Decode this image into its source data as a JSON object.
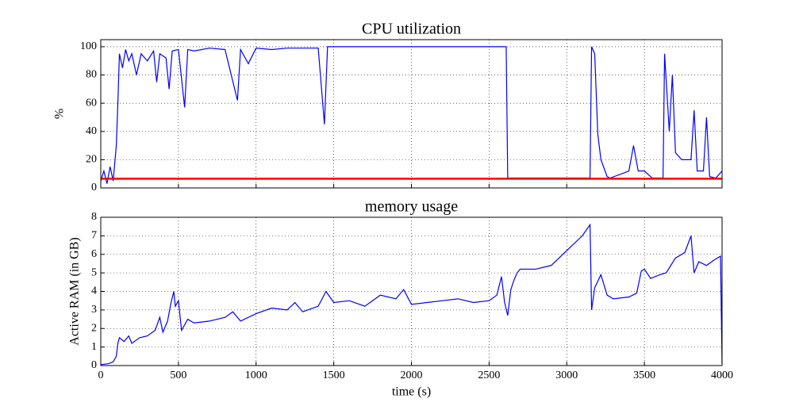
{
  "chart_data": [
    {
      "type": "line",
      "title": "CPU utilization",
      "ylabel": "%",
      "x": [
        0,
        20,
        40,
        60,
        80,
        100,
        110,
        120,
        140,
        160,
        180,
        200,
        230,
        260,
        300,
        340,
        360,
        380,
        420,
        440,
        460,
        500,
        540,
        560,
        600,
        700,
        800,
        880,
        900,
        950,
        1000,
        1100,
        1200,
        1300,
        1400,
        1440,
        1460,
        1600,
        1800,
        2000,
        2200,
        2400,
        2610,
        2620,
        2800,
        3000,
        3100,
        3150,
        3160,
        3180,
        3200,
        3220,
        3260,
        3280,
        3400,
        3430,
        3460,
        3500,
        3550,
        3620,
        3630,
        3660,
        3680,
        3700,
        3740,
        3800,
        3820,
        3840,
        3880,
        3900,
        3920,
        3960,
        4000
      ],
      "series": [
        {
          "color": "#0000ff",
          "width": 1.2,
          "values": [
            5,
            12,
            3,
            15,
            5,
            30,
            60,
            95,
            85,
            98,
            90,
            95,
            80,
            95,
            90,
            97,
            75,
            95,
            92,
            70,
            97,
            98,
            57,
            98,
            97,
            99,
            98,
            62,
            98,
            88,
            99,
            98,
            99,
            99,
            99,
            45,
            100,
            100,
            100,
            100,
            100,
            100,
            100,
            7,
            7,
            7,
            7,
            7,
            100,
            95,
            38,
            20,
            8,
            7,
            12,
            30,
            12,
            12,
            7,
            7,
            95,
            40,
            80,
            25,
            20,
            20,
            55,
            12,
            12,
            50,
            8,
            7,
            12
          ]
        },
        {
          "color": "#ff0000",
          "width": 2.5,
          "values": [
            6.5,
            6.5,
            6.5,
            6.5,
            6.5,
            6.5,
            6.5,
            6.5,
            6.5,
            6.5,
            6.5,
            6.5,
            6.5,
            6.5,
            6.5,
            6.5,
            6.5,
            6.5,
            6.5,
            6.5,
            6.5,
            6.5,
            6.5,
            6.5,
            6.5,
            6.5,
            6.5,
            6.5,
            6.5,
            6.5,
            6.5,
            6.5,
            6.5,
            6.5,
            6.5,
            6.5,
            6.5,
            6.5,
            6.5,
            6.5,
            6.5,
            6.5,
            6.5,
            6.5,
            6.5,
            6.5,
            6.5,
            6.5,
            6.5,
            6.5,
            6.5,
            6.5,
            6.5,
            6.5,
            6.5,
            6.5,
            6.5,
            6.5,
            6.5,
            6.5,
            6.5,
            6.5,
            6.5,
            6.5,
            6.5,
            6.5,
            6.5,
            6.5,
            6.5,
            6.5,
            6.5,
            6.5,
            6.5
          ]
        }
      ],
      "xlim": [
        0,
        4000
      ],
      "xticks": [
        0,
        500,
        1000,
        1500,
        2000,
        2500,
        3000,
        3500,
        4000
      ],
      "ylim": [
        0,
        105
      ],
      "yticks": [
        0,
        20,
        40,
        60,
        80,
        100
      ],
      "grid": true
    },
    {
      "type": "line",
      "title": "memory usage",
      "xlabel": "time (s)",
      "ylabel": "Active RAM (in GB)",
      "x": [
        0,
        50,
        80,
        100,
        110,
        120,
        150,
        180,
        200,
        250,
        300,
        350,
        380,
        400,
        430,
        450,
        470,
        480,
        500,
        520,
        560,
        600,
        700,
        800,
        850,
        900,
        1000,
        1100,
        1200,
        1250,
        1300,
        1400,
        1450,
        1500,
        1600,
        1700,
        1800,
        1900,
        1950,
        2000,
        2100,
        2200,
        2300,
        2400,
        2500,
        2550,
        2580,
        2600,
        2620,
        2640,
        2660,
        2680,
        2700,
        2800,
        2900,
        3000,
        3100,
        3150,
        3160,
        3180,
        3220,
        3260,
        3300,
        3400,
        3450,
        3480,
        3500,
        3540,
        3600,
        3640,
        3700,
        3760,
        3800,
        3820,
        3850,
        3900,
        3950,
        3990,
        4000
      ],
      "series": [
        {
          "color": "#0000ff",
          "width": 1.2,
          "values": [
            0.05,
            0.1,
            0.2,
            0.5,
            1.2,
            1.5,
            1.3,
            1.6,
            1.2,
            1.5,
            1.6,
            1.9,
            2.6,
            1.8,
            2.4,
            3.3,
            4.0,
            3.2,
            3.5,
            1.9,
            2.5,
            2.3,
            2.4,
            2.6,
            2.9,
            2.4,
            2.8,
            3.1,
            3.0,
            3.4,
            2.9,
            3.2,
            4.0,
            3.4,
            3.5,
            3.2,
            3.8,
            3.6,
            4.1,
            3.3,
            3.4,
            3.5,
            3.6,
            3.4,
            3.5,
            3.8,
            4.8,
            3.4,
            2.7,
            4.1,
            4.6,
            5.0,
            5.2,
            5.2,
            5.4,
            6.2,
            7.0,
            7.6,
            3.0,
            4.2,
            4.9,
            3.8,
            3.6,
            3.7,
            3.9,
            5.1,
            5.2,
            4.7,
            4.9,
            5.0,
            5.8,
            6.1,
            7.0,
            5.0,
            5.6,
            5.4,
            5.7,
            5.9,
            0.1
          ]
        }
      ],
      "xlim": [
        0,
        4000
      ],
      "xticks": [
        0,
        500,
        1000,
        1500,
        2000,
        2500,
        3000,
        3500,
        4000
      ],
      "ylim": [
        0,
        8
      ],
      "yticks": [
        0,
        1,
        2,
        3,
        4,
        5,
        6,
        7,
        8
      ],
      "grid": true
    }
  ]
}
